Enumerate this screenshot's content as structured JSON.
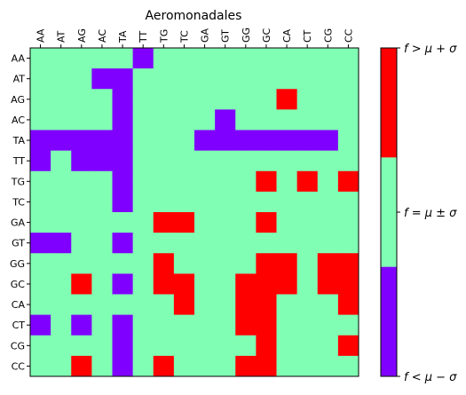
{
  "chart_data": {
    "type": "heatmap",
    "title": "Aeromonadales",
    "x_labels": [
      "AA",
      "AT",
      "AG",
      "AC",
      "TA",
      "TT",
      "TG",
      "TC",
      "GA",
      "GT",
      "GG",
      "GC",
      "CA",
      "CT",
      "CG",
      "CC"
    ],
    "y_labels": [
      "AA",
      "AT",
      "AG",
      "AC",
      "TA",
      "TT",
      "TG",
      "TC",
      "GA",
      "GT",
      "GG",
      "GC",
      "CA",
      "CT",
      "CG",
      "CC"
    ],
    "x_axis_position": "top",
    "value_legend": {
      "-1": "low",
      "0": "mid",
      "1": "high"
    },
    "colors": {
      "low": "#8000ff",
      "mid": "#80ffb4",
      "high": "#ff0000"
    },
    "matrix": [
      [
        0,
        0,
        0,
        0,
        0,
        -1,
        0,
        0,
        0,
        0,
        0,
        0,
        0,
        0,
        0,
        0
      ],
      [
        0,
        0,
        0,
        -1,
        -1,
        0,
        0,
        0,
        0,
        0,
        0,
        0,
        0,
        0,
        0,
        0
      ],
      [
        0,
        0,
        0,
        0,
        -1,
        0,
        0,
        0,
        0,
        0,
        0,
        0,
        1,
        0,
        0,
        0
      ],
      [
        0,
        0,
        0,
        0,
        -1,
        0,
        0,
        0,
        0,
        -1,
        0,
        0,
        0,
        0,
        0,
        0
      ],
      [
        -1,
        -1,
        -1,
        -1,
        -1,
        0,
        0,
        0,
        -1,
        -1,
        -1,
        -1,
        -1,
        -1,
        -1,
        0
      ],
      [
        -1,
        0,
        -1,
        -1,
        -1,
        0,
        0,
        0,
        0,
        0,
        0,
        0,
        0,
        0,
        0,
        0
      ],
      [
        0,
        0,
        0,
        0,
        -1,
        0,
        0,
        0,
        0,
        0,
        0,
        1,
        0,
        1,
        0,
        1
      ],
      [
        0,
        0,
        0,
        0,
        -1,
        0,
        0,
        0,
        0,
        0,
        0,
        0,
        0,
        0,
        0,
        0
      ],
      [
        0,
        0,
        0,
        0,
        0,
        0,
        1,
        1,
        0,
        0,
        0,
        1,
        0,
        0,
        0,
        0
      ],
      [
        -1,
        -1,
        0,
        0,
        -1,
        0,
        0,
        0,
        0,
        0,
        0,
        0,
        0,
        0,
        0,
        0
      ],
      [
        0,
        0,
        0,
        0,
        0,
        0,
        1,
        0,
        0,
        0,
        0,
        1,
        1,
        0,
        1,
        1
      ],
      [
        0,
        0,
        1,
        0,
        -1,
        0,
        1,
        1,
        0,
        0,
        1,
        1,
        1,
        0,
        1,
        1
      ],
      [
        0,
        0,
        0,
        0,
        0,
        0,
        0,
        1,
        0,
        0,
        1,
        1,
        0,
        0,
        0,
        1
      ],
      [
        -1,
        0,
        -1,
        0,
        -1,
        0,
        0,
        0,
        0,
        0,
        1,
        1,
        0,
        0,
        0,
        0
      ],
      [
        0,
        0,
        0,
        0,
        -1,
        0,
        0,
        0,
        0,
        0,
        0,
        1,
        0,
        0,
        0,
        1
      ],
      [
        0,
        0,
        1,
        0,
        -1,
        0,
        1,
        0,
        0,
        0,
        1,
        1,
        0,
        0,
        0,
        0
      ]
    ],
    "colorbar": {
      "ticks": [
        {
          "label": "f > μ + σ",
          "category": "high"
        },
        {
          "label": "f = μ ± σ",
          "category": "mid"
        },
        {
          "label": "f < μ − σ",
          "category": "low"
        }
      ]
    }
  }
}
